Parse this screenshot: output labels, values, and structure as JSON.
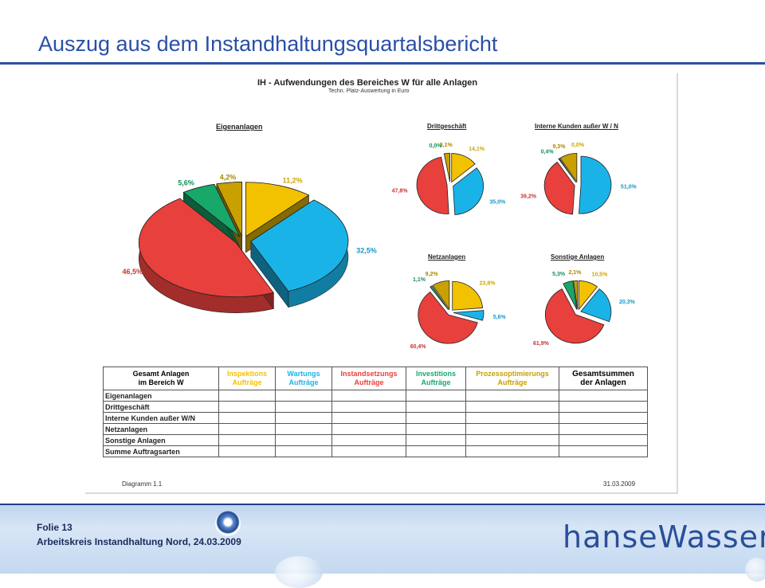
{
  "slide": {
    "title": "Auszug aus dem Instandhaltungsquartalsbericht",
    "folie": "Folie 13",
    "event": "Arbeitskreis Instandhaltung Nord, 24.03.2009",
    "logo": "hanseWasser"
  },
  "report": {
    "title": "IH - Aufwendungen des Bereiches W für alle Anlagen",
    "subtitle": "Techn. Platz-Auswertung  in Euro",
    "footer_left": "Diagramm 1.1",
    "footer_right": "31.03.2009"
  },
  "colors": {
    "inspektion": "#f2c200",
    "wartung": "#1ab3e8",
    "instandsetzung": "#e8403c",
    "investition": "#17a86a",
    "prozess": "#c8a000"
  },
  "chart_data": [
    {
      "type": "pie",
      "title": "Eigenanlagen",
      "slices": [
        {
          "value": 11.2,
          "label": "11,2%",
          "color": "#f2c200"
        },
        {
          "value": 32.5,
          "label": "32,5%",
          "color": "#1ab3e8"
        },
        {
          "value": 46.5,
          "label": "46,5%",
          "color": "#e8403c"
        },
        {
          "value": 5.6,
          "label": "5,6%",
          "color": "#17a86a"
        },
        {
          "value": 4.2,
          "label": "4,2%",
          "color": "#c8a000"
        }
      ]
    },
    {
      "type": "pie",
      "title": "Drittgeschäft",
      "slices": [
        {
          "value": 14.1,
          "label": "14,1%",
          "color": "#f2c200"
        },
        {
          "value": 35.0,
          "label": "35,0%",
          "color": "#1ab3e8"
        },
        {
          "value": 47.8,
          "label": "47,8%",
          "color": "#e8403c"
        },
        {
          "value": 0.0,
          "label": "0,0%",
          "color": "#17a86a"
        },
        {
          "value": 3.1,
          "label": "3,1%",
          "color": "#c8a000"
        }
      ]
    },
    {
      "type": "pie",
      "title": "Interne Kunden außer W / N",
      "slices": [
        {
          "value": 0.0,
          "label": "0,0%",
          "color": "#f2c200"
        },
        {
          "value": 51.0,
          "label": "51,0%",
          "color": "#1ab3e8"
        },
        {
          "value": 39.2,
          "label": "39,2%",
          "color": "#e8403c"
        },
        {
          "value": 0.4,
          "label": "0,4%",
          "color": "#17a86a"
        },
        {
          "value": 9.3,
          "label": "9,3%",
          "color": "#c8a000"
        }
      ]
    },
    {
      "type": "pie",
      "title": "Netzanlagen",
      "slices": [
        {
          "value": 23.8,
          "label": "23,8%",
          "color": "#f2c200"
        },
        {
          "value": 5.6,
          "label": "5,6%",
          "color": "#1ab3e8"
        },
        {
          "value": 60.4,
          "label": "60,4%",
          "color": "#e8403c"
        },
        {
          "value": 1.1,
          "label": "1,1%",
          "color": "#17a86a"
        },
        {
          "value": 9.2,
          "label": "9,2%",
          "color": "#c8a000"
        }
      ]
    },
    {
      "type": "pie",
      "title": "Sonstige Anlagen",
      "slices": [
        {
          "value": 10.5,
          "label": "10,5%",
          "color": "#f2c200"
        },
        {
          "value": 20.3,
          "label": "20,3%",
          "color": "#1ab3e8"
        },
        {
          "value": 61.9,
          "label": "61,9%",
          "color": "#e8403c"
        },
        {
          "value": 5.3,
          "label": "5,3%",
          "color": "#17a86a"
        },
        {
          "value": 2.1,
          "label": "2,1%",
          "color": "#c8a000"
        }
      ]
    }
  ],
  "table": {
    "headers": [
      {
        "line1": "Gesamt Anlagen",
        "line2": "im Bereich W",
        "color": "#222222"
      },
      {
        "line1": "Inspektions",
        "line2": "Aufträge",
        "color": "#f2c200"
      },
      {
        "line1": "Wartungs",
        "line2": "Aufträge",
        "color": "#1ab3e8"
      },
      {
        "line1": "Instandsetzungs",
        "line2": "Aufträge",
        "color": "#e8403c"
      },
      {
        "line1": "Investitions",
        "line2": "Aufträge",
        "color": "#17a86a"
      },
      {
        "line1": "Prozessoptimierungs",
        "line2": "Aufträge",
        "color": "#c8a000"
      },
      {
        "line1": "Gesamtsummen",
        "line2": "der Anlagen",
        "color": "#222222"
      }
    ],
    "rows": [
      "Eigenanlagen",
      "Drittgeschäft",
      "Interne Kunden außer W/N",
      "Netzanlagen",
      "Sonstige Anlagen",
      "Summe Auftragsarten"
    ]
  }
}
